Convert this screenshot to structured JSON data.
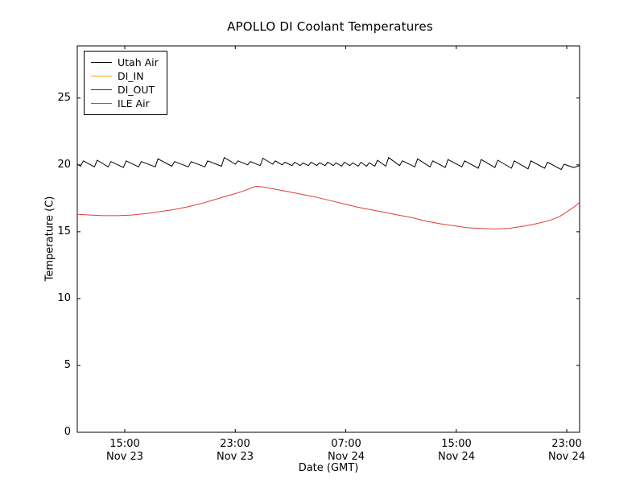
{
  "chart_data": {
    "type": "line",
    "title": "APOLLO DI Coolant Temperatures",
    "xlabel": "Date (GMT)",
    "ylabel": "Temperature (C)",
    "x_unit": "hours since Nov 23 00:00 GMT",
    "xlim": [
      11.56,
      47.93
    ],
    "ylim": [
      0,
      28.9
    ],
    "grid": false,
    "legend_position": "upper left",
    "y_ticks": [
      {
        "value": 0,
        "label": "0"
      },
      {
        "value": 5,
        "label": "5"
      },
      {
        "value": 10,
        "label": "10"
      },
      {
        "value": 15,
        "label": "15"
      },
      {
        "value": 20,
        "label": "20"
      },
      {
        "value": 25,
        "label": "25"
      }
    ],
    "x_ticks": [
      {
        "value": 15,
        "time": "15:00",
        "date": "Nov 23"
      },
      {
        "value": 23,
        "time": "23:00",
        "date": "Nov 23"
      },
      {
        "value": 31,
        "time": "07:00",
        "date": "Nov 24"
      },
      {
        "value": 39,
        "time": "15:00",
        "date": "Nov 24"
      },
      {
        "value": 47,
        "time": "23:00",
        "date": "Nov 24"
      }
    ],
    "series": [
      {
        "name": "Utah Air",
        "color": "#000000",
        "points": [
          [
            11.56,
            20.05
          ],
          [
            11.8,
            19.9
          ],
          [
            12.0,
            20.3
          ],
          [
            12.8,
            19.85
          ],
          [
            13.0,
            20.35
          ],
          [
            13.8,
            19.85
          ],
          [
            14.0,
            20.25
          ],
          [
            14.9,
            19.8
          ],
          [
            15.1,
            20.3
          ],
          [
            16.0,
            19.85
          ],
          [
            16.2,
            20.25
          ],
          [
            17.2,
            19.85
          ],
          [
            17.4,
            20.45
          ],
          [
            18.4,
            19.9
          ],
          [
            18.6,
            20.25
          ],
          [
            19.6,
            19.85
          ],
          [
            19.8,
            20.25
          ],
          [
            20.8,
            19.85
          ],
          [
            21.0,
            20.3
          ],
          [
            22.0,
            19.9
          ],
          [
            22.2,
            20.55
          ],
          [
            23.0,
            20.05
          ],
          [
            23.2,
            20.3
          ],
          [
            23.9,
            20.0
          ],
          [
            24.1,
            20.25
          ],
          [
            24.8,
            19.95
          ],
          [
            25.0,
            20.5
          ],
          [
            25.7,
            20.05
          ],
          [
            25.9,
            20.3
          ],
          [
            26.4,
            20.0
          ],
          [
            26.6,
            20.2
          ],
          [
            27.1,
            19.95
          ],
          [
            27.3,
            20.2
          ],
          [
            27.7,
            19.95
          ],
          [
            27.9,
            20.15
          ],
          [
            28.3,
            19.95
          ],
          [
            28.5,
            20.2
          ],
          [
            28.9,
            19.95
          ],
          [
            29.1,
            20.15
          ],
          [
            29.5,
            19.95
          ],
          [
            29.7,
            20.2
          ],
          [
            30.1,
            19.95
          ],
          [
            30.3,
            20.15
          ],
          [
            30.7,
            19.9
          ],
          [
            30.9,
            20.2
          ],
          [
            31.3,
            19.95
          ],
          [
            31.5,
            20.15
          ],
          [
            31.9,
            19.9
          ],
          [
            32.1,
            20.2
          ],
          [
            32.5,
            19.9
          ],
          [
            32.7,
            20.15
          ],
          [
            33.1,
            19.9
          ],
          [
            33.3,
            20.35
          ],
          [
            33.9,
            19.9
          ],
          [
            34.1,
            20.55
          ],
          [
            34.9,
            19.95
          ],
          [
            35.1,
            20.3
          ],
          [
            36.0,
            19.85
          ],
          [
            36.2,
            20.45
          ],
          [
            37.1,
            19.85
          ],
          [
            37.3,
            20.3
          ],
          [
            38.2,
            19.8
          ],
          [
            38.4,
            20.4
          ],
          [
            39.4,
            19.85
          ],
          [
            39.6,
            20.3
          ],
          [
            40.6,
            19.75
          ],
          [
            40.8,
            20.4
          ],
          [
            41.8,
            19.8
          ],
          [
            42.0,
            20.35
          ],
          [
            43.0,
            19.75
          ],
          [
            43.2,
            20.3
          ],
          [
            44.2,
            19.7
          ],
          [
            44.4,
            20.3
          ],
          [
            45.4,
            19.75
          ],
          [
            45.6,
            20.2
          ],
          [
            46.6,
            19.65
          ],
          [
            46.8,
            20.05
          ],
          [
            47.5,
            19.8
          ],
          [
            47.93,
            19.95
          ]
        ]
      },
      {
        "name": "DI_IN",
        "color": "#ffa500",
        "points": []
      },
      {
        "name": "DI_OUT",
        "color": "#800080",
        "points": []
      },
      {
        "name": "ILE Air",
        "color": "#e03c3c",
        "points": [
          [
            11.56,
            16.3
          ],
          [
            12.5,
            16.25
          ],
          [
            13.5,
            16.2
          ],
          [
            14.5,
            16.2
          ],
          [
            15.5,
            16.25
          ],
          [
            16.5,
            16.35
          ],
          [
            17.5,
            16.5
          ],
          [
            18.5,
            16.65
          ],
          [
            19.5,
            16.85
          ],
          [
            20.5,
            17.1
          ],
          [
            21.5,
            17.4
          ],
          [
            22.3,
            17.65
          ],
          [
            23.0,
            17.85
          ],
          [
            23.6,
            18.05
          ],
          [
            24.1,
            18.25
          ],
          [
            24.5,
            18.4
          ],
          [
            25.0,
            18.35
          ],
          [
            25.8,
            18.2
          ],
          [
            26.8,
            18.0
          ],
          [
            27.8,
            17.8
          ],
          [
            28.8,
            17.6
          ],
          [
            29.8,
            17.35
          ],
          [
            30.8,
            17.1
          ],
          [
            31.8,
            16.85
          ],
          [
            32.8,
            16.65
          ],
          [
            33.8,
            16.45
          ],
          [
            34.8,
            16.25
          ],
          [
            35.8,
            16.05
          ],
          [
            36.8,
            15.8
          ],
          [
            37.8,
            15.6
          ],
          [
            38.8,
            15.45
          ],
          [
            39.8,
            15.3
          ],
          [
            40.8,
            15.25
          ],
          [
            41.8,
            15.2
          ],
          [
            42.8,
            15.25
          ],
          [
            43.8,
            15.4
          ],
          [
            44.8,
            15.6
          ],
          [
            45.8,
            15.85
          ],
          [
            46.5,
            16.15
          ],
          [
            47.1,
            16.55
          ],
          [
            47.6,
            16.9
          ],
          [
            47.93,
            17.2
          ]
        ]
      }
    ]
  }
}
